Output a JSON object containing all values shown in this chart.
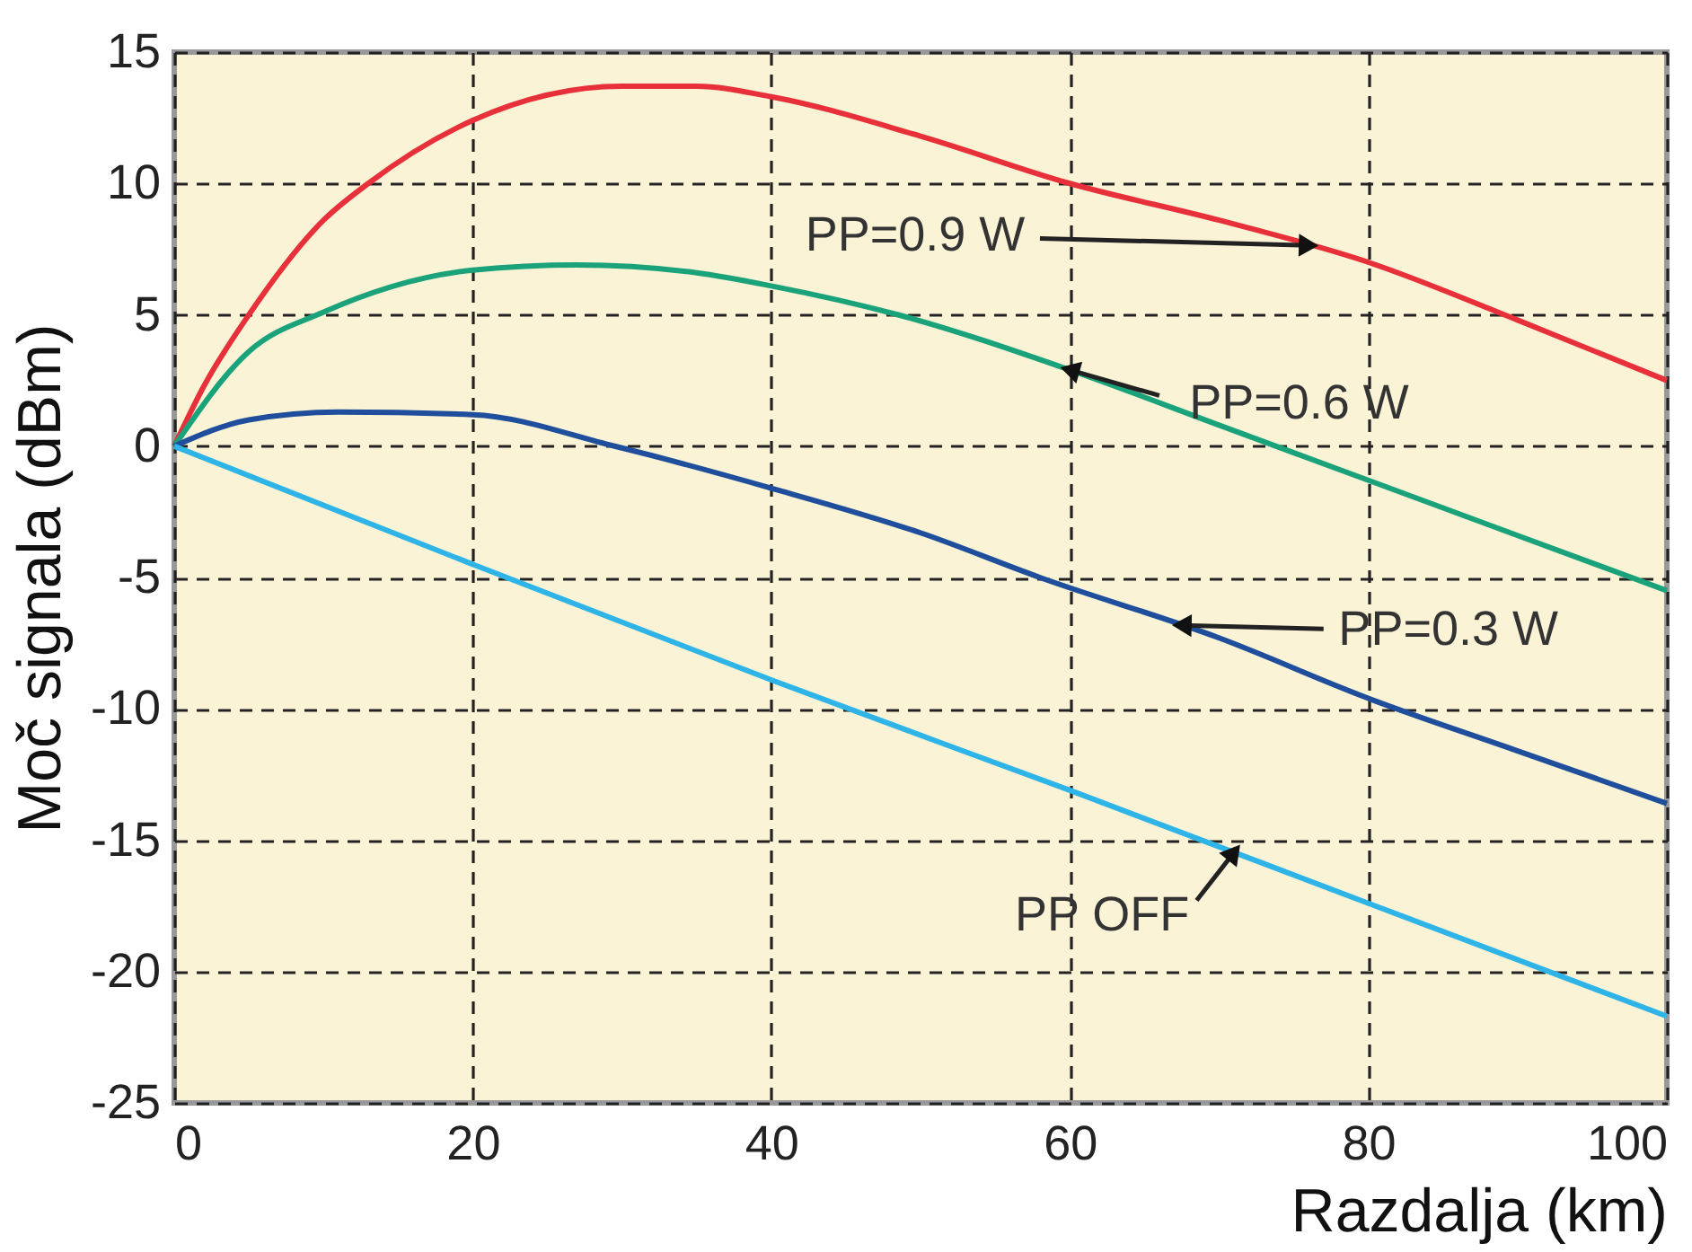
{
  "chart_data": {
    "type": "line",
    "xlabel": "Razdalja (km)",
    "ylabel": "Moč signala  (dBm)",
    "xlim": [
      0,
      100
    ],
    "xticks": [
      0,
      20,
      40,
      60,
      80,
      100
    ],
    "ylim": [
      -25,
      15
    ],
    "yticks": [
      -25,
      -20,
      -15,
      -10,
      -5,
      0,
      5,
      10,
      15
    ],
    "grid": true,
    "line_style": "solid",
    "marker": "none",
    "legend": false,
    "series": [
      {
        "name": "PP=0.9 W",
        "color": "#e8303a",
        "x": [
          0,
          2,
          5,
          10,
          13,
          20,
          30,
          35,
          40,
          50,
          60,
          70,
          80,
          90,
          100
        ],
        "values": [
          0,
          2.3,
          5,
          8.6,
          10,
          12.4,
          13.7,
          13.7,
          13.3,
          11.8,
          10,
          8.6,
          7,
          4.8,
          2.5
        ]
      },
      {
        "name": "PP=0.6 W",
        "color": "#1aa37a",
        "x": [
          0,
          5,
          10,
          20,
          27,
          35,
          40,
          48.5,
          60,
          70,
          80,
          90,
          100
        ],
        "values": [
          0,
          3.6,
          5.1,
          6.7,
          6.9,
          6.6,
          6.1,
          5,
          2.9,
          0.8,
          -1.3,
          -3.4,
          -5.5
        ]
      },
      {
        "name": "PP=0.3 W",
        "color": "#1f4e9c",
        "x": [
          0,
          5,
          11,
          20,
          29.5,
          40,
          50,
          58,
          70,
          80,
          90,
          100
        ],
        "values": [
          0,
          1,
          1.3,
          1.2,
          0,
          -1.6,
          -3.3,
          -5,
          -7.3,
          -9.6,
          -11.6,
          -13.6
        ]
      },
      {
        "name": "PP OFF",
        "color": "#2fb4e8",
        "x": [
          0,
          20,
          40,
          60,
          80,
          100
        ],
        "values": [
          0,
          -4.5,
          -8.9,
          -13.1,
          -17.4,
          -21.7
        ]
      }
    ]
  }
}
